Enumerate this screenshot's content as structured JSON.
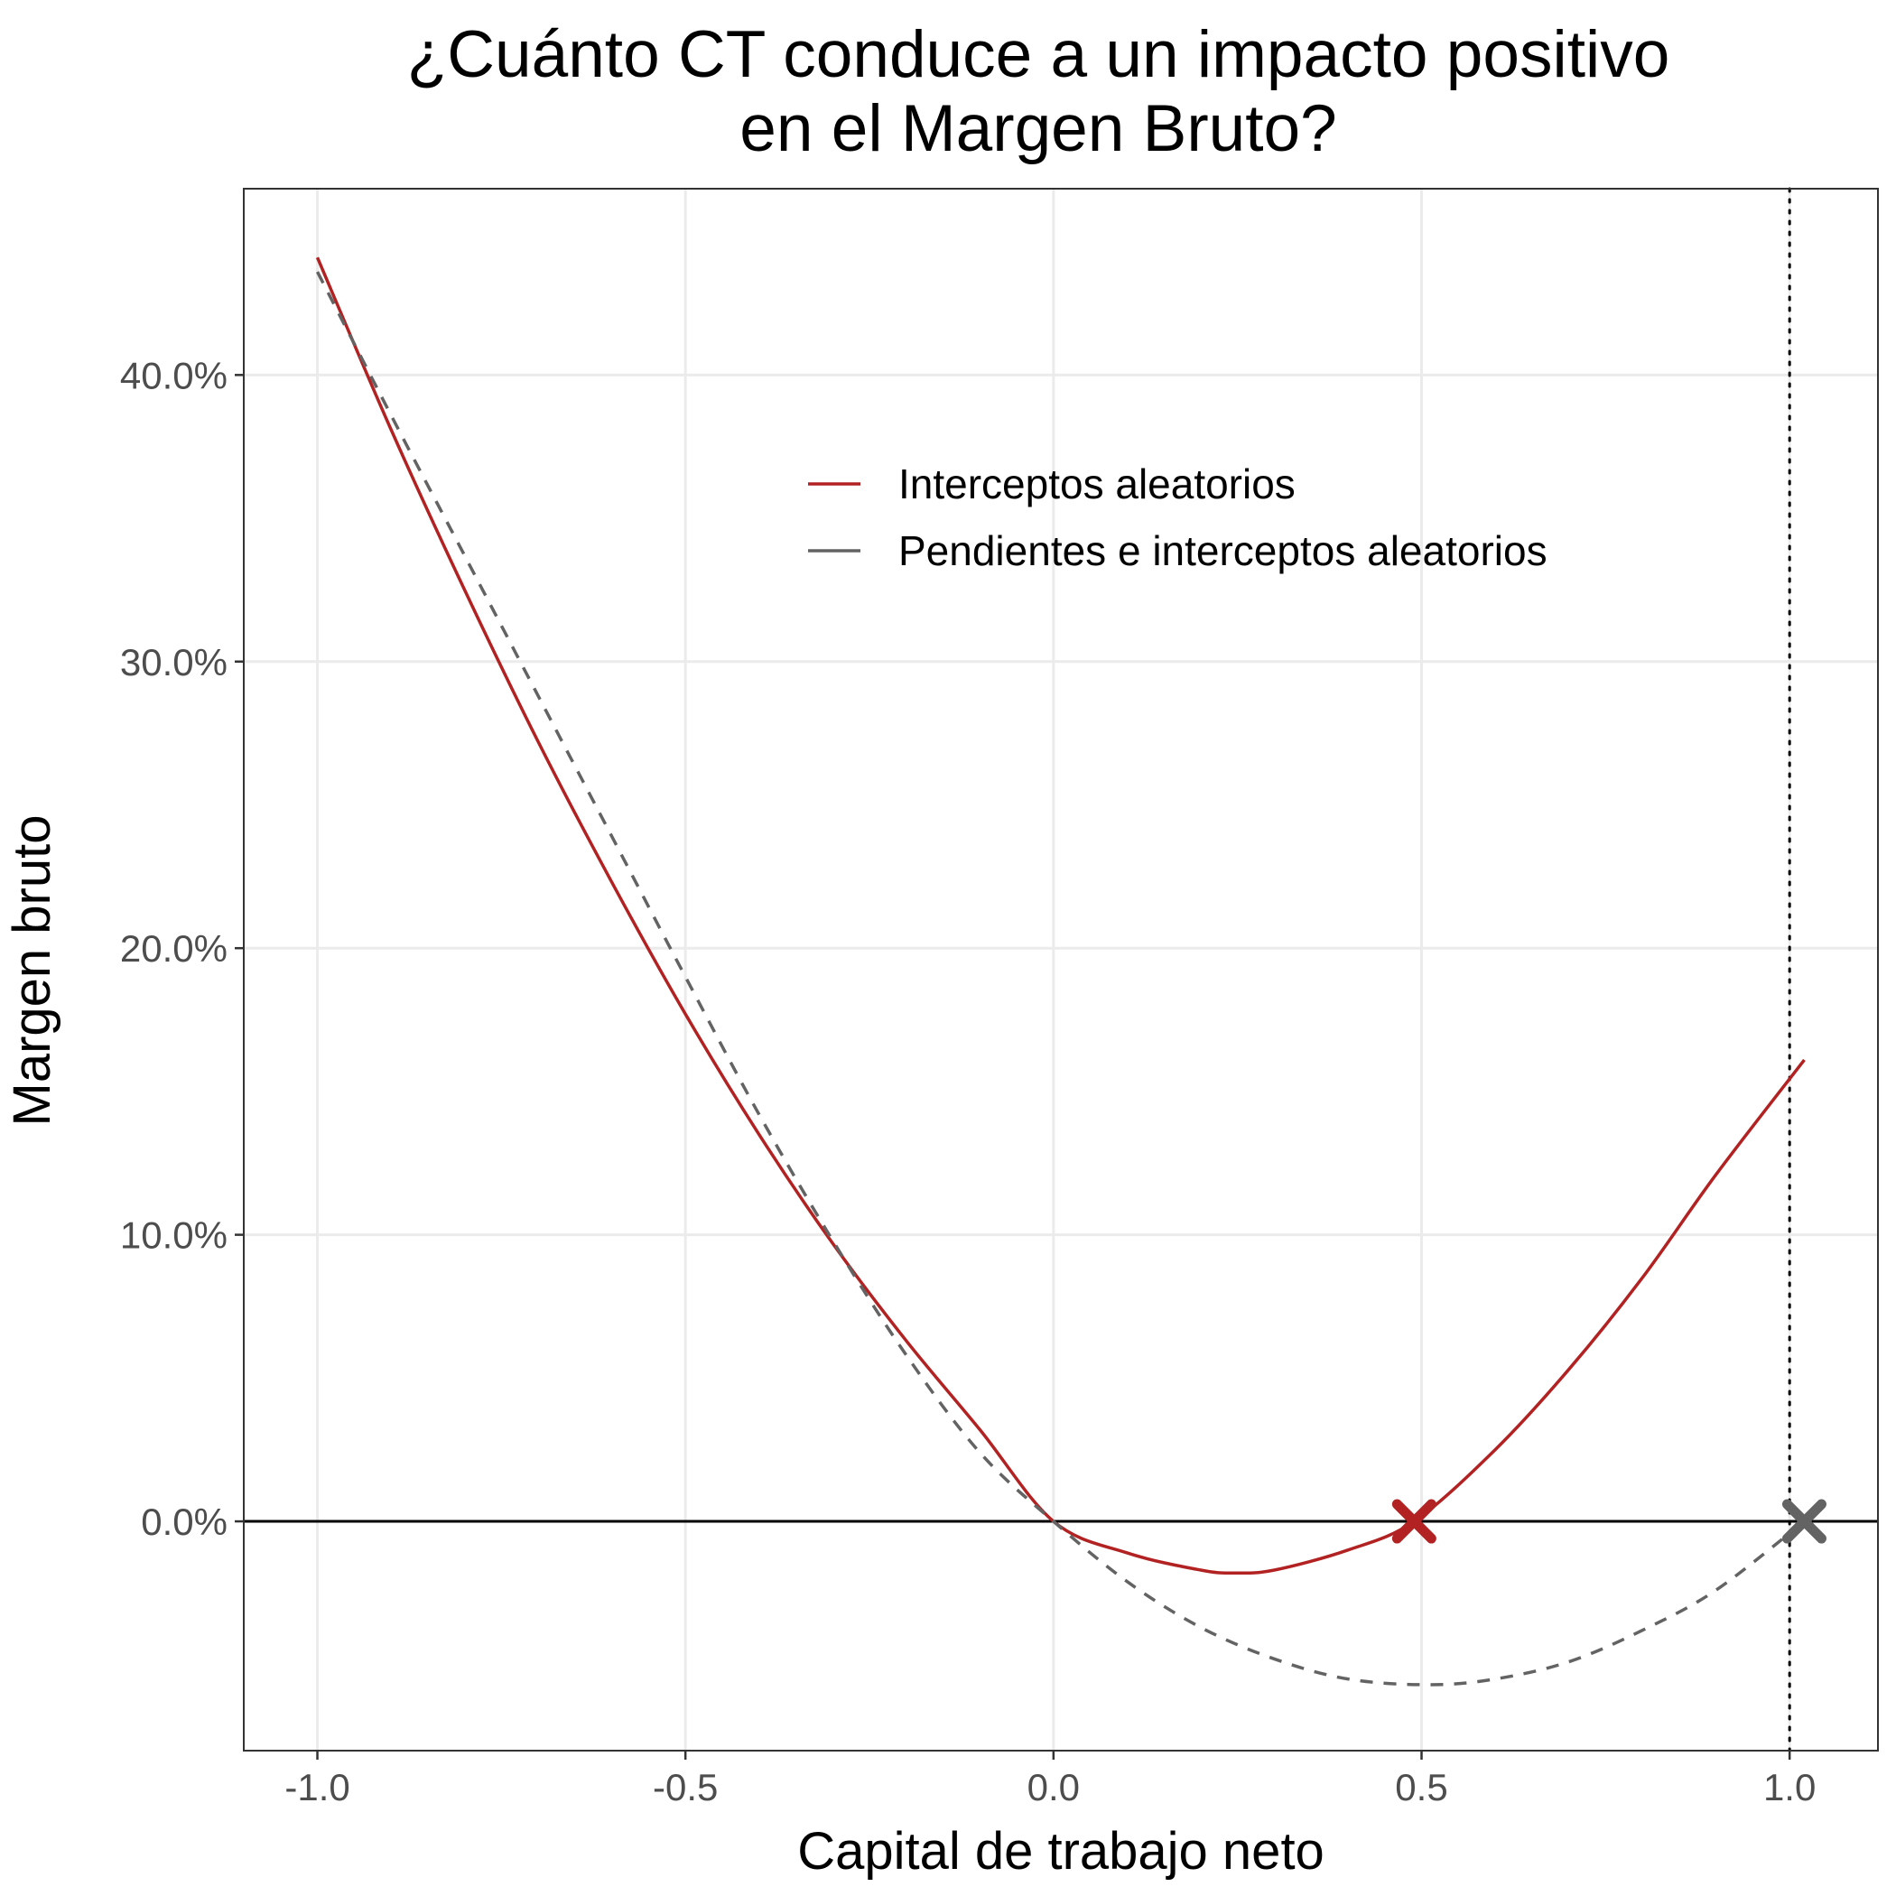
{
  "chart_data": {
    "type": "line",
    "title": [
      "¿Cuánto CT conduce a un impacto positivo",
      "en el Margen Bruto?"
    ],
    "xlabel": "Capital de trabajo neto",
    "ylabel": "Margen bruto",
    "xlim": [
      -1.1,
      1.12
    ],
    "ylim": [
      -0.08,
      0.465
    ],
    "x_ticks": [
      -1.0,
      -0.5,
      0.0,
      0.5,
      1.0
    ],
    "x_tick_labels": [
      "-1.0",
      "-0.5",
      "0.0",
      "0.5",
      "1.0"
    ],
    "y_ticks": [
      0.0,
      0.1,
      0.2,
      0.3,
      0.4
    ],
    "y_tick_labels": [
      "0.0%",
      "10.0%",
      "20.0%",
      "30.0%",
      "40.0%"
    ],
    "grid": true,
    "legend_position": "top-right (inside plot)",
    "series": [
      {
        "name": "Interceptos aleatorios",
        "style": "solid",
        "color": "#b22222",
        "x": [
          -1.0,
          -0.9,
          -0.8,
          -0.7,
          -0.6,
          -0.5,
          -0.4,
          -0.3,
          -0.2,
          -0.1,
          0.0,
          0.1,
          0.2,
          0.245,
          0.3,
          0.4,
          0.49,
          0.6,
          0.7,
          0.8,
          0.9,
          1.02
        ],
        "y": [
          0.441,
          0.381,
          0.325,
          0.272,
          0.223,
          0.177,
          0.135,
          0.097,
          0.063,
          0.032,
          0.0,
          -0.011,
          -0.017,
          -0.018,
          -0.017,
          -0.01,
          0.0,
          0.025,
          0.053,
          0.085,
          0.121,
          0.161
        ]
      },
      {
        "name": "Pendientes e interceptos aleatorios",
        "style": "dashed",
        "color": "#636363",
        "x": [
          -1.0,
          -0.9,
          -0.8,
          -0.7,
          -0.6,
          -0.5,
          -0.4,
          -0.3,
          -0.2,
          -0.1,
          0.0,
          0.1,
          0.2,
          0.3,
          0.4,
          0.51,
          0.6,
          0.7,
          0.8,
          0.9,
          1.02
        ],
        "y": [
          0.436,
          0.386,
          0.337,
          0.288,
          0.239,
          0.19,
          0.142,
          0.098,
          0.058,
          0.024,
          0.0,
          -0.021,
          -0.037,
          -0.048,
          -0.055,
          -0.057,
          -0.055,
          -0.049,
          -0.038,
          -0.024,
          0.0
        ]
      }
    ],
    "markers": [
      {
        "x": 0.49,
        "y": 0.0,
        "shape": "x",
        "color": "#b22222"
      },
      {
        "x": 1.02,
        "y": 0.0,
        "shape": "x",
        "color": "#636363"
      }
    ],
    "reference_lines": {
      "horizontal_y": 0.0,
      "vertical_x": 1.0
    }
  }
}
